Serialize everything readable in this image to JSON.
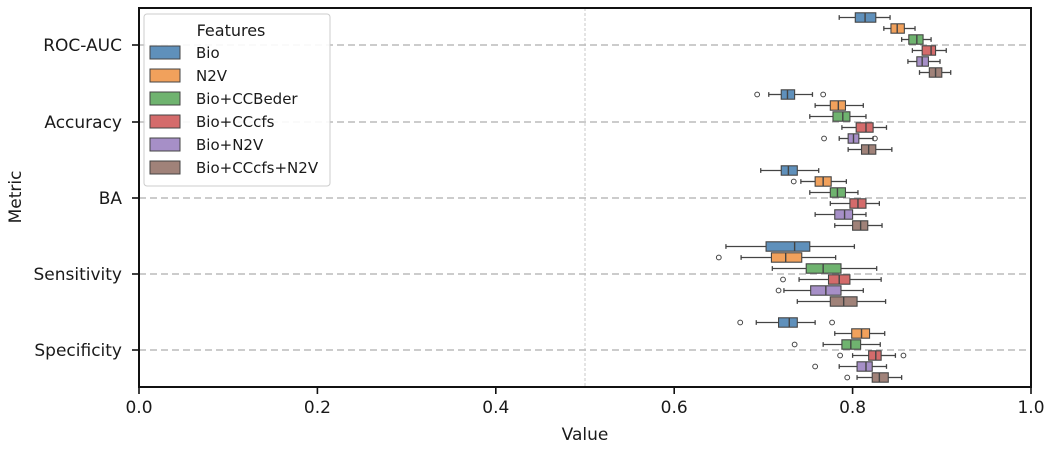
{
  "chart_data": {
    "type": "boxplot",
    "orientation": "horizontal",
    "xlabel": "Value",
    "ylabel": "Metric",
    "xlim": [
      0.0,
      1.0
    ],
    "xticks": [
      "0.0",
      "0.2",
      "0.4",
      "0.6",
      "0.8",
      "1.0"
    ],
    "reference_line": 0.5,
    "grid": "dashed horizontal lines at each metric",
    "legend": {
      "title": "Features",
      "placement": "top-left"
    },
    "categories": [
      "ROC-AUC",
      "Accuracy",
      "BA",
      "Sensitivity",
      "Specificity"
    ],
    "series": [
      {
        "name": "Bio",
        "color": "#5f90bb",
        "boxes": [
          {
            "whislo": 0.785,
            "q1": 0.803,
            "med": 0.814,
            "q3": 0.826,
            "whishi": 0.842,
            "fliers": []
          },
          {
            "whislo": 0.706,
            "q1": 0.72,
            "med": 0.727,
            "q3": 0.735,
            "whishi": 0.755,
            "fliers": [
              0.693,
              0.767
            ]
          },
          {
            "whislo": 0.697,
            "q1": 0.72,
            "med": 0.728,
            "q3": 0.738,
            "whishi": 0.762,
            "fliers": []
          },
          {
            "whislo": 0.658,
            "q1": 0.703,
            "med": 0.735,
            "q3": 0.752,
            "whishi": 0.802,
            "fliers": []
          },
          {
            "whislo": 0.692,
            "q1": 0.717,
            "med": 0.729,
            "q3": 0.738,
            "whishi": 0.758,
            "fliers": [
              0.674,
              0.777
            ]
          }
        ]
      },
      {
        "name": "N2V",
        "color": "#f1a15c",
        "boxes": [
          {
            "whislo": 0.835,
            "q1": 0.843,
            "med": 0.85,
            "q3": 0.858,
            "whishi": 0.87,
            "fliers": []
          },
          {
            "whislo": 0.758,
            "q1": 0.775,
            "med": 0.784,
            "q3": 0.792,
            "whishi": 0.812,
            "fliers": []
          },
          {
            "whislo": 0.742,
            "q1": 0.758,
            "med": 0.767,
            "q3": 0.776,
            "whishi": 0.793,
            "fliers": [
              0.734
            ]
          },
          {
            "whislo": 0.675,
            "q1": 0.709,
            "med": 0.725,
            "q3": 0.743,
            "whishi": 0.781,
            "fliers": [
              0.65
            ]
          },
          {
            "whislo": 0.78,
            "q1": 0.799,
            "med": 0.81,
            "q3": 0.819,
            "whishi": 0.836,
            "fliers": []
          }
        ]
      },
      {
        "name": "Bio+CCBeder",
        "color": "#6fb36f",
        "boxes": [
          {
            "whislo": 0.855,
            "q1": 0.863,
            "med": 0.872,
            "q3": 0.879,
            "whishi": 0.888,
            "fliers": []
          },
          {
            "whislo": 0.752,
            "q1": 0.778,
            "med": 0.789,
            "q3": 0.797,
            "whishi": 0.815,
            "fliers": []
          },
          {
            "whislo": 0.752,
            "q1": 0.775,
            "med": 0.783,
            "q3": 0.792,
            "whishi": 0.806,
            "fliers": []
          },
          {
            "whislo": 0.71,
            "q1": 0.748,
            "med": 0.767,
            "q3": 0.787,
            "whishi": 0.827,
            "fliers": []
          },
          {
            "whislo": 0.767,
            "q1": 0.788,
            "med": 0.798,
            "q3": 0.809,
            "whishi": 0.831,
            "fliers": [
              0.735
            ]
          }
        ]
      },
      {
        "name": "Bio+CCcfs",
        "color": "#d46b6b",
        "boxes": [
          {
            "whislo": 0.867,
            "q1": 0.878,
            "med": 0.888,
            "q3": 0.893,
            "whishi": 0.905,
            "fliers": []
          },
          {
            "whislo": 0.788,
            "q1": 0.804,
            "med": 0.815,
            "q3": 0.823,
            "whishi": 0.838,
            "fliers": []
          },
          {
            "whislo": 0.775,
            "q1": 0.797,
            "med": 0.806,
            "q3": 0.815,
            "whishi": 0.83,
            "fliers": []
          },
          {
            "whislo": 0.74,
            "q1": 0.773,
            "med": 0.785,
            "q3": 0.797,
            "whishi": 0.832,
            "fliers": [
              0.722
            ]
          },
          {
            "whislo": 0.8,
            "q1": 0.818,
            "med": 0.826,
            "q3": 0.832,
            "whishi": 0.848,
            "fliers": [
              0.786,
              0.857
            ]
          }
        ]
      },
      {
        "name": "Bio+N2V",
        "color": "#a68fc7",
        "boxes": [
          {
            "whislo": 0.862,
            "q1": 0.872,
            "med": 0.878,
            "q3": 0.885,
            "whishi": 0.898,
            "fliers": []
          },
          {
            "whislo": 0.785,
            "q1": 0.795,
            "med": 0.801,
            "q3": 0.807,
            "whishi": 0.823,
            "fliers": [
              0.768,
              0.825
            ]
          },
          {
            "whislo": 0.758,
            "q1": 0.78,
            "med": 0.791,
            "q3": 0.8,
            "whishi": 0.815,
            "fliers": []
          },
          {
            "whislo": 0.723,
            "q1": 0.753,
            "med": 0.77,
            "q3": 0.787,
            "whishi": 0.812,
            "fliers": [
              0.717
            ]
          },
          {
            "whislo": 0.785,
            "q1": 0.805,
            "med": 0.815,
            "q3": 0.822,
            "whishi": 0.838,
            "fliers": [
              0.758
            ]
          }
        ]
      },
      {
        "name": "Bio+CCcfs+N2V",
        "color": "#a08279",
        "boxes": [
          {
            "whislo": 0.875,
            "q1": 0.886,
            "med": 0.893,
            "q3": 0.9,
            "whishi": 0.91,
            "fliers": []
          },
          {
            "whislo": 0.795,
            "q1": 0.81,
            "med": 0.818,
            "q3": 0.826,
            "whishi": 0.844,
            "fliers": []
          },
          {
            "whislo": 0.78,
            "q1": 0.8,
            "med": 0.809,
            "q3": 0.817,
            "whishi": 0.833,
            "fliers": []
          },
          {
            "whislo": 0.738,
            "q1": 0.775,
            "med": 0.79,
            "q3": 0.805,
            "whishi": 0.837,
            "fliers": []
          },
          {
            "whislo": 0.805,
            "q1": 0.822,
            "med": 0.83,
            "q3": 0.84,
            "whishi": 0.855,
            "fliers": [
              0.794
            ]
          }
        ]
      }
    ]
  }
}
